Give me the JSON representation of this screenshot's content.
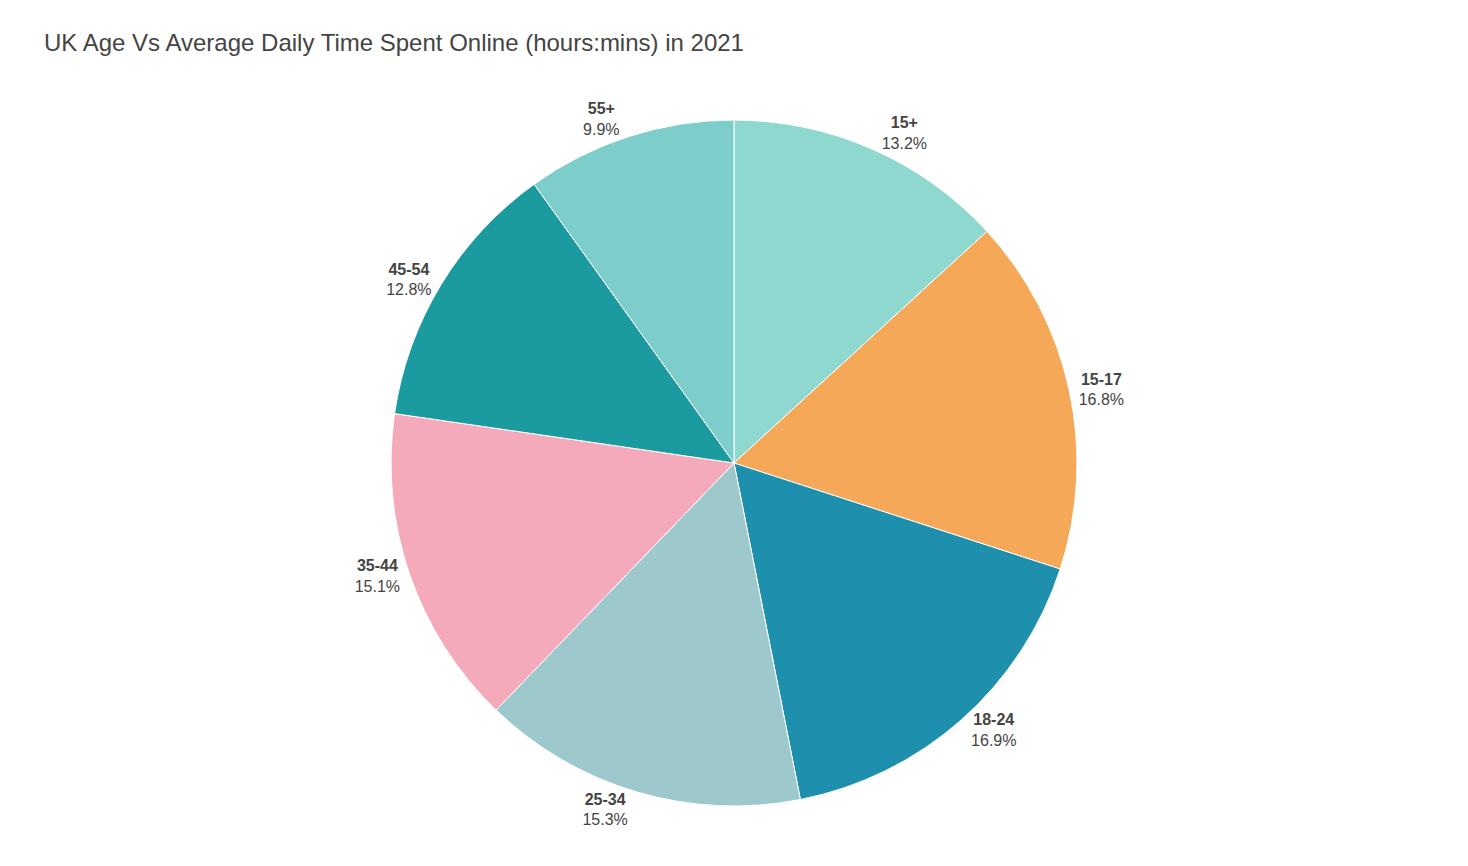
{
  "chart_data": {
    "type": "pie",
    "title": "UK Age Vs Average Daily Time Spent Online (hours:mins) in 2021",
    "categories": [
      "15+",
      "15-17",
      "18-24",
      "25-34",
      "35-44",
      "45-54",
      "55+"
    ],
    "values": [
      13.2,
      16.8,
      16.9,
      15.3,
      15.1,
      12.8,
      9.9
    ],
    "value_labels": [
      "13.2%",
      "16.8%",
      "16.9%",
      "15.3%",
      "15.1%",
      "12.8%",
      "9.9%"
    ],
    "colors": [
      "#8ED8CF",
      "#F5A857",
      "#1E8FAD",
      "#9DC8CC",
      "#F4AABB",
      "#1B9AA0",
      "#7DCECB"
    ],
    "data_labels": true
  }
}
